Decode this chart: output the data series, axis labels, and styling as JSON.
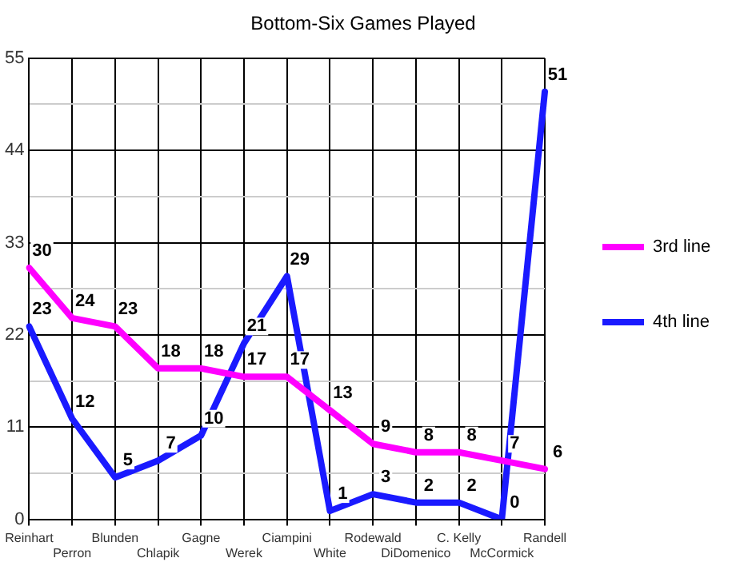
{
  "chart_data": {
    "type": "line",
    "title": "Bottom-Six Games Played",
    "categories": [
      "Reinhart",
      "Perron",
      "Blunden",
      "Chlapik",
      "Gagne",
      "Werek",
      "Ciampini",
      "White",
      "Rodewald",
      "DiDomenico",
      "C. Kelly",
      "McCormick",
      "Randell"
    ],
    "series": [
      {
        "name": "3rd line",
        "color": "#ff00ff",
        "values": [
          30,
          24,
          23,
          18,
          18,
          17,
          17,
          13,
          9,
          8,
          8,
          7,
          6
        ]
      },
      {
        "name": "4th line",
        "color": "#1a1aff",
        "values": [
          23,
          12,
          5,
          7,
          10,
          21,
          29,
          1,
          3,
          2,
          2,
          0,
          51
        ]
      }
    ],
    "ylim": [
      0,
      55
    ],
    "yticks": [
      0,
      {
        "value": 5.5,
        "label": null
      },
      11,
      {
        "value": 16.5,
        "label": null
      },
      22,
      {
        "value": 27.5,
        "label": null
      },
      33,
      {
        "value": 38.5,
        "label": null
      },
      44,
      {
        "value": 49.5,
        "label": null
      },
      55
    ],
    "grid": true,
    "legend": "right",
    "marker": "none",
    "line_style": "solid",
    "data_labels": true
  }
}
